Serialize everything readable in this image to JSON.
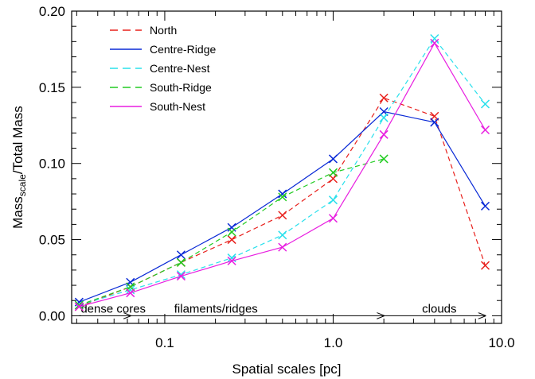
{
  "chart_data": {
    "type": "line",
    "title": "",
    "xlabel": "Spatial scales [pc]",
    "ylabel": {
      "prefix": "Mass",
      "subscript": "scale",
      "suffix": "/Total Mass"
    },
    "xscale": "log",
    "xlim": [
      0.028,
      10.0
    ],
    "ylim": [
      -0.005,
      0.2
    ],
    "x_ticks": [
      {
        "value": 0.1,
        "label": "0.1"
      },
      {
        "value": 1.0,
        "label": "1.0"
      },
      {
        "value": 10.0,
        "label": "10.0"
      }
    ],
    "y_ticks": [
      {
        "value": 0.0,
        "label": "0.00"
      },
      {
        "value": 0.05,
        "label": "0.05"
      },
      {
        "value": 0.1,
        "label": "0.10"
      },
      {
        "value": 0.15,
        "label": "0.15"
      },
      {
        "value": 0.2,
        "label": "0.20"
      }
    ],
    "legend_position": "top-left",
    "marker": "x",
    "series": [
      {
        "name": "North",
        "color": "#e8201c",
        "dashed": true,
        "x": [
          0.031,
          0.0625,
          0.125,
          0.25,
          0.5,
          1.0,
          2.0,
          4.0,
          8.0
        ],
        "y": [
          0.006,
          0.019,
          0.035,
          0.05,
          0.066,
          0.09,
          0.143,
          0.131,
          0.033
        ]
      },
      {
        "name": "Centre-Ridge",
        "color": "#0a2ad6",
        "dashed": false,
        "x": [
          0.031,
          0.0625,
          0.125,
          0.25,
          0.5,
          1.0,
          2.0,
          4.0,
          8.0
        ],
        "y": [
          0.009,
          0.022,
          0.04,
          0.058,
          0.08,
          0.103,
          0.134,
          0.127,
          0.072
        ]
      },
      {
        "name": "Centre-Nest",
        "color": "#29e0ec",
        "dashed": true,
        "x": [
          0.031,
          0.0625,
          0.125,
          0.25,
          0.5,
          1.0,
          2.0,
          4.0,
          8.0
        ],
        "y": [
          0.007,
          0.017,
          0.027,
          0.038,
          0.053,
          0.076,
          0.13,
          0.182,
          0.139
        ]
      },
      {
        "name": "South-Ridge",
        "color": "#22cc22",
        "dashed": true,
        "x": [
          0.031,
          0.0625,
          0.125,
          0.25,
          0.5,
          1.0,
          2.0
        ],
        "y": [
          0.007,
          0.019,
          0.035,
          0.055,
          0.078,
          0.094,
          0.103
        ]
      },
      {
        "name": "South-Nest",
        "color": "#e81ee0",
        "dashed": false,
        "x": [
          0.031,
          0.0625,
          0.125,
          0.25,
          0.5,
          1.0,
          2.0,
          4.0,
          8.0
        ],
        "y": [
          0.006,
          0.015,
          0.026,
          0.036,
          0.045,
          0.064,
          0.119,
          0.179,
          0.122
        ]
      }
    ],
    "annotations": {
      "arrows_y": 0.0,
      "arrows": [
        {
          "label": "dense cores",
          "from": 0.031,
          "to": 0.0625
        },
        {
          "label": "filaments/ridges",
          "from": 0.0625,
          "to": 2.0
        },
        {
          "label": "clouds",
          "from": 2.0,
          "to": 8.0
        }
      ]
    }
  }
}
